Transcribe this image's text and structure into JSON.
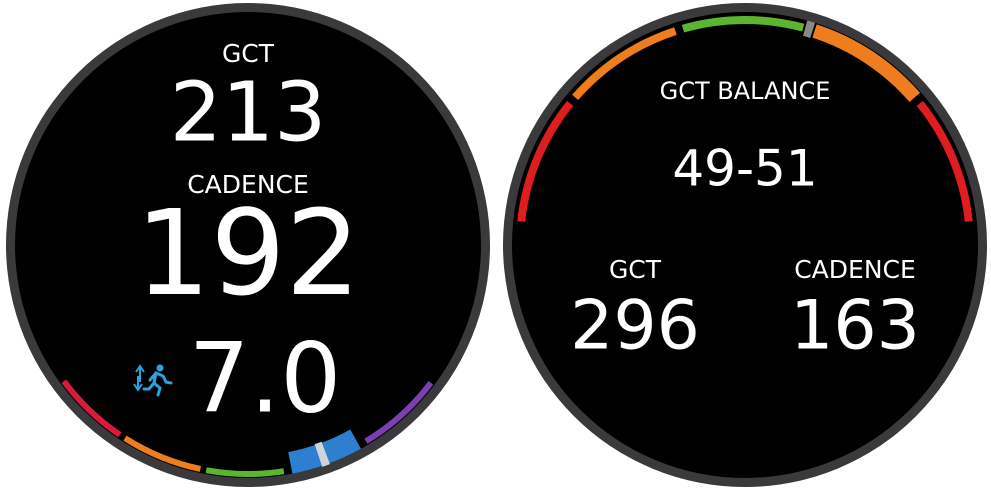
{
  "watches": [
    {
      "fields": [
        {
          "label": "GCT",
          "value": "213"
        },
        {
          "label": "CADENCE",
          "value": "192"
        },
        {
          "value": "7.0"
        }
      ]
    },
    {
      "title": "GCT BALANCE",
      "value": "49-51",
      "fields": [
        {
          "label": "GCT",
          "value": "296"
        },
        {
          "label": "CADENCE",
          "value": "163"
        }
      ]
    }
  ]
}
